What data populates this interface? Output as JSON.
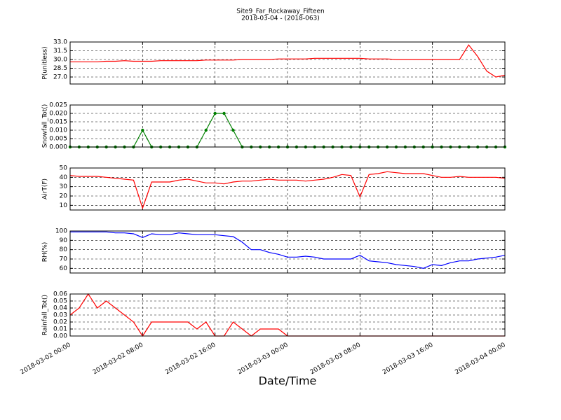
{
  "chart_data": {
    "type": "line",
    "title": "Site9_Far_Rockaway_Fifteen",
    "subtitle": "2018-03-04 - (2018-063)",
    "xlabel": "Date/Time",
    "x": [
      "2018-03-02 00:00",
      "2018-03-02 01:00",
      "2018-03-02 02:00",
      "2018-03-02 03:00",
      "2018-03-02 04:00",
      "2018-03-02 05:00",
      "2018-03-02 06:00",
      "2018-03-02 07:00",
      "2018-03-02 08:00",
      "2018-03-02 09:00",
      "2018-03-02 10:00",
      "2018-03-02 11:00",
      "2018-03-02 12:00",
      "2018-03-02 13:00",
      "2018-03-02 14:00",
      "2018-03-02 15:00",
      "2018-03-02 16:00",
      "2018-03-02 17:00",
      "2018-03-02 18:00",
      "2018-03-02 19:00",
      "2018-03-02 20:00",
      "2018-03-02 21:00",
      "2018-03-02 22:00",
      "2018-03-02 23:00",
      "2018-03-03 00:00",
      "2018-03-03 01:00",
      "2018-03-03 02:00",
      "2018-03-03 03:00",
      "2018-03-03 04:00",
      "2018-03-03 05:00",
      "2018-03-03 06:00",
      "2018-03-03 07:00",
      "2018-03-03 08:00",
      "2018-03-03 09:00",
      "2018-03-03 10:00",
      "2018-03-03 11:00",
      "2018-03-03 12:00",
      "2018-03-03 13:00",
      "2018-03-03 14:00",
      "2018-03-03 15:00",
      "2018-03-03 16:00",
      "2018-03-03 17:00",
      "2018-03-03 18:00",
      "2018-03-03 19:00",
      "2018-03-03 20:00",
      "2018-03-03 21:00",
      "2018-03-03 22:00",
      "2018-03-03 23:00",
      "2018-03-04 00:00"
    ],
    "xlim": [
      "2018-03-02 00:00",
      "2018-03-04 00:00"
    ],
    "xticks": [
      "2018-03-02 00:00",
      "2018-03-02 08:00",
      "2018-03-02 16:00",
      "2018-03-03 00:00",
      "2018-03-03 08:00",
      "2018-03-03 16:00",
      "2018-03-04 00:00"
    ],
    "grid": true,
    "panels": [
      {
        "ylabel": "P(unitless)",
        "ylim": [
          25.8,
          33.0
        ],
        "yticks": [
          {
            "value": 27,
            "label": "27.0"
          },
          28.5,
          {
            "value": 30,
            "label": "30.0"
          },
          31.5,
          {
            "value": 33,
            "label": "33.0"
          }
        ],
        "series": [
          {
            "color": "#ff0000",
            "values": [
              29.6,
              29.6,
              29.6,
              29.6,
              29.7,
              29.7,
              29.8,
              29.7,
              29.7,
              29.7,
              29.8,
              29.8,
              29.8,
              29.8,
              29.8,
              29.9,
              29.9,
              29.9,
              29.9,
              30.0,
              30.0,
              30.0,
              30.0,
              30.1,
              30.1,
              30.1,
              30.1,
              30.2,
              30.2,
              30.2,
              30.2,
              30.2,
              30.2,
              30.1,
              30.1,
              30.1,
              30.0,
              30.0,
              30.0,
              30.0,
              30.0,
              30.0,
              30.0,
              30.0,
              32.5,
              30.5,
              28.0,
              27.0,
              27.3
            ]
          }
        ]
      },
      {
        "ylabel": "Snowfall_Tot()",
        "ylim": [
          0,
          0.025
        ],
        "yticks": [
          {
            "value": 0,
            "label": "0.000"
          },
          {
            "value": 0.005,
            "label": "0.005"
          },
          {
            "value": 0.01,
            "label": "0.010"
          },
          {
            "value": 0.015,
            "label": "0.015"
          },
          {
            "value": 0.02,
            "label": "0.020"
          },
          {
            "value": 0.025,
            "label": "0.025"
          }
        ],
        "series": [
          {
            "color": "#008000",
            "marker": true,
            "values": [
              0,
              0,
              0,
              0,
              0,
              0,
              0,
              0,
              0.01,
              0,
              0,
              0,
              0,
              0,
              0,
              0.01,
              0.02,
              0.02,
              0.01,
              0,
              0,
              0,
              0,
              0,
              0,
              0,
              0,
              0,
              0,
              0,
              0,
              0,
              0,
              0,
              0,
              0,
              0,
              0,
              0,
              0,
              0,
              0,
              0,
              0,
              0,
              0,
              0,
              0,
              0
            ]
          }
        ]
      },
      {
        "ylabel": "AirT(F)",
        "ylim": [
          5,
          50
        ],
        "yticks": [
          10,
          20,
          30,
          40,
          50
        ],
        "series": [
          {
            "color": "#ff0000",
            "values": [
              42,
              41,
              41,
              41,
              40,
              39,
              38,
              37,
              7,
              35,
              35,
              35,
              37,
              38,
              36,
              34,
              34,
              33,
              35,
              36,
              36,
              37,
              38,
              37,
              37,
              37,
              36,
              37,
              38,
              40,
              43,
              42,
              19,
              43,
              44,
              46,
              45,
              44,
              44,
              44,
              42,
              40,
              40,
              41,
              40,
              40,
              40,
              40,
              39
            ]
          }
        ]
      },
      {
        "ylabel": "RH(%)",
        "ylim": [
          55,
          100
        ],
        "yticks": [
          60,
          70,
          80,
          90,
          100
        ],
        "series": [
          {
            "color": "#0000ff",
            "values": [
              99,
              99,
              99,
              99,
              99,
              98,
              98,
              97,
              93,
              97,
              96,
              96,
              98,
              97,
              96,
              96,
              96,
              95,
              94,
              88,
              80,
              80,
              77,
              75,
              72,
              72,
              73,
              72,
              70,
              70,
              70,
              70,
              74,
              68,
              67,
              66,
              64,
              63,
              62,
              60,
              64,
              63,
              66,
              68,
              68,
              70,
              71,
              72,
              74
            ]
          }
        ]
      },
      {
        "ylabel": "Rainfall_Tot()",
        "ylim": [
          0,
          0.06
        ],
        "yticks": [
          {
            "value": 0,
            "label": "0.00"
          },
          0.01,
          0.02,
          0.03,
          0.04,
          0.05,
          0.06
        ],
        "series": [
          {
            "color": "#ff0000",
            "values": [
              0.03,
              0.04,
              0.06,
              0.04,
              0.05,
              0.04,
              0.03,
              0.02,
              0,
              0.02,
              0.02,
              0.02,
              0.02,
              0.02,
              0.01,
              0.02,
              0,
              0,
              0.02,
              0.01,
              0,
              0.01,
              0.01,
              0.01,
              0,
              0,
              0,
              0,
              0,
              0,
              0,
              0,
              0,
              0,
              0,
              0,
              0,
              0,
              0,
              0,
              0,
              0,
              0,
              0,
              0,
              0,
              0,
              0,
              0
            ]
          }
        ]
      }
    ]
  }
}
